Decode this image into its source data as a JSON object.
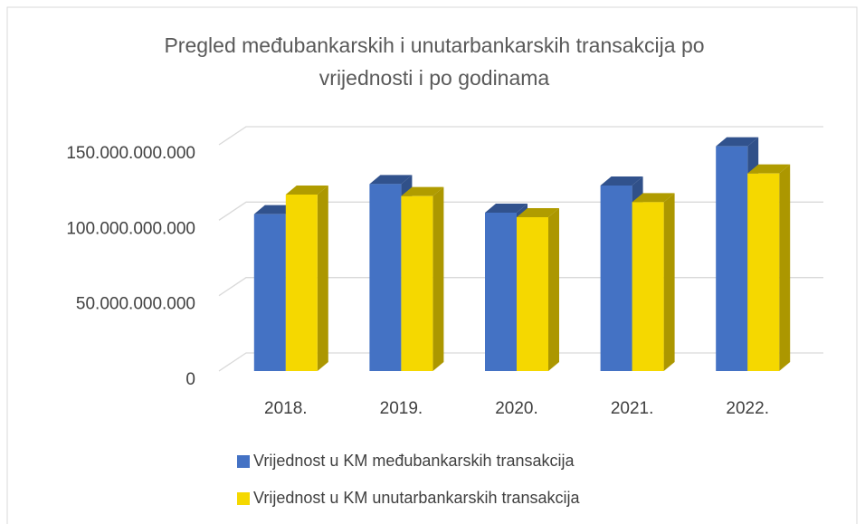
{
  "chart_data": {
    "type": "bar3d",
    "title": [
      "Pregled međubankarskih i unutarbankarskih transakcija po",
      "vrijednosti i po godinama"
    ],
    "categories": [
      "2018.",
      "2019.",
      "2020.",
      "2021.",
      "2022."
    ],
    "series": [
      {
        "name": "Vrijednost u KM međubankarskih transakcija",
        "color": "#4472c4",
        "values": [
          104000000000,
          124000000000,
          105000000000,
          123000000000,
          149000000000
        ]
      },
      {
        "name": "Vrijednost u KM unutarbankarskih transakcija",
        "color": "#f5d800",
        "values": [
          117000000000,
          116000000000,
          102000000000,
          112000000000,
          131000000000
        ]
      }
    ],
    "ylim": [
      0,
      150000000000
    ],
    "yticks": [
      0,
      {
        "value": 50000000000,
        "label": "50.000.000.000"
      },
      {
        "value": 100000000000,
        "label": "100.000.000.000"
      },
      {
        "value": 150000000000,
        "label": "150.000.000.000"
      }
    ],
    "grid": true
  }
}
